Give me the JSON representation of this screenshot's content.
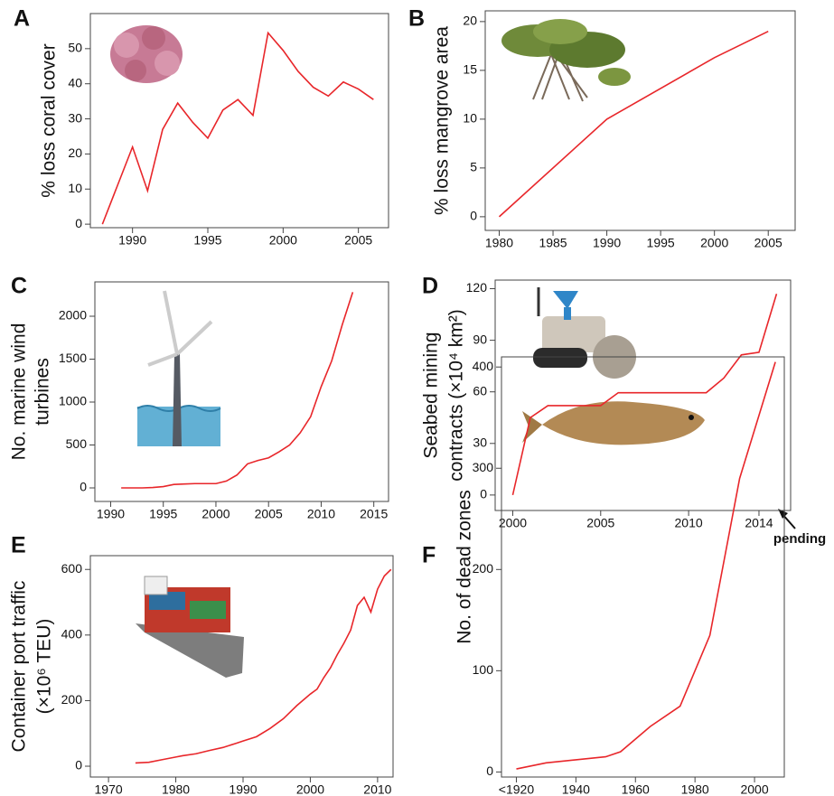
{
  "chart_data": [
    {
      "type": "line",
      "panel": "A",
      "ylabel": [
        "% loss coral cover"
      ],
      "color": "#e8262a",
      "x": [
        1988,
        1989,
        1990,
        1991,
        1992,
        1993,
        1994,
        1995,
        1996,
        1997,
        1998,
        1999,
        2000,
        2001,
        2002,
        2003,
        2004,
        2005,
        2006
      ],
      "values": [
        0,
        11,
        22,
        9.5,
        27,
        34.5,
        29,
        24.5,
        32.5,
        35.5,
        31,
        54.5,
        49.5,
        43.5,
        39,
        36.5,
        40.5,
        38.5,
        35.5
      ],
      "xlim": [
        1987.2,
        2007
      ],
      "ylim": [
        -1,
        60
      ],
      "xticks": [
        1990,
        1995,
        2000,
        2005
      ],
      "yticks": [
        0,
        10,
        20,
        30,
        40,
        50
      ]
    },
    {
      "type": "line",
      "panel": "B",
      "ylabel": [
        "% loss mangrove area"
      ],
      "color": "#e8262a",
      "x": [
        1980,
        1990,
        2000,
        2005
      ],
      "values": [
        0,
        10,
        16.3,
        19
      ],
      "xlim": [
        1978.7,
        2007.5
      ],
      "ylim": [
        -1.4,
        21.1
      ],
      "xticks": [
        1980,
        1985,
        1990,
        1995,
        2000,
        2005
      ],
      "yticks": [
        0,
        5,
        10,
        15,
        20
      ]
    },
    {
      "type": "line",
      "panel": "C",
      "ylabel": [
        "No. marine wind",
        "turbines"
      ],
      "color": "#e8262a",
      "x": [
        1991,
        1992,
        1993,
        1994,
        1995,
        1996,
        1997,
        1998,
        1999,
        2000,
        2001,
        2002,
        2003,
        2004,
        2005,
        2006,
        2007,
        2008,
        2009,
        2010,
        2011,
        2012,
        2013
      ],
      "values": [
        0,
        0,
        0,
        5,
        15,
        40,
        45,
        50,
        50,
        50,
        80,
        150,
        280,
        320,
        350,
        420,
        500,
        640,
        830,
        1180,
        1480,
        1900,
        2280
      ],
      "xlim": [
        1988.5,
        2016.4
      ],
      "ylim": [
        -158,
        2400
      ],
      "xticks": [
        1990,
        1995,
        2000,
        2005,
        2010,
        2015
      ],
      "yticks": [
        0,
        500,
        1000,
        1500,
        2000
      ]
    },
    {
      "type": "line",
      "panel": "D",
      "ylabel": [
        "Seabed mining",
        "contracts (×10⁴ km²)"
      ],
      "color": "#e8262a",
      "annotation": "pending",
      "x": [
        2000,
        2001,
        2002,
        2005,
        2006,
        2011,
        2012,
        2013,
        2014,
        2015
      ],
      "values": [
        0,
        45,
        52,
        52,
        59.5,
        59.5,
        68,
        81.5,
        83,
        117
      ],
      "xlim": [
        1999,
        2015.8
      ],
      "ylim": [
        -9,
        125
      ],
      "xticks": [
        2000,
        2005,
        2010,
        2014
      ],
      "yticks": [
        0,
        30,
        60,
        90,
        120
      ]
    },
    {
      "type": "line",
      "panel": "E",
      "ylabel": [
        "Container port traffic",
        "(×10⁶ TEU)"
      ],
      "color": "#e8262a",
      "x": [
        1974,
        1976,
        1978,
        1980,
        1981,
        1983,
        1985,
        1987,
        1989,
        1990,
        1992,
        1994,
        1996,
        1998,
        2000,
        2001,
        2002,
        2003,
        2004,
        2005,
        2006,
        2007,
        2008,
        2009,
        2010,
        2011,
        2012
      ],
      "values": [
        10,
        12,
        20,
        28,
        32,
        38,
        48,
        57,
        70,
        77,
        90,
        115,
        145,
        185,
        220,
        235,
        270,
        300,
        340,
        375,
        415,
        490,
        515,
        470,
        540,
        580,
        600
      ],
      "xlim": [
        1967.3,
        2012.3
      ],
      "ylim": [
        -33,
        642
      ],
      "xticks": [
        1970,
        1980,
        1990,
        2000,
        2010
      ],
      "yticks": [
        0,
        200,
        400,
        600
      ]
    },
    {
      "type": "line",
      "panel": "F",
      "ylabel": [
        "No. of dead zones"
      ],
      "color": "#e8262a",
      "x": [
        1920,
        1930,
        1940,
        1950,
        1955,
        1965,
        1975,
        1985,
        1995,
        2007
      ],
      "values": [
        3,
        9,
        12,
        15,
        20,
        45,
        65,
        135,
        290,
        405
      ],
      "xlim": [
        1915,
        2010
      ],
      "ylim": [
        -5,
        410
      ],
      "xticks": [
        {
          "value": 1920,
          "label": "<1920"
        },
        1940,
        1960,
        1980,
        2000
      ],
      "yticks": [
        0,
        100,
        200,
        300,
        400
      ]
    }
  ]
}
